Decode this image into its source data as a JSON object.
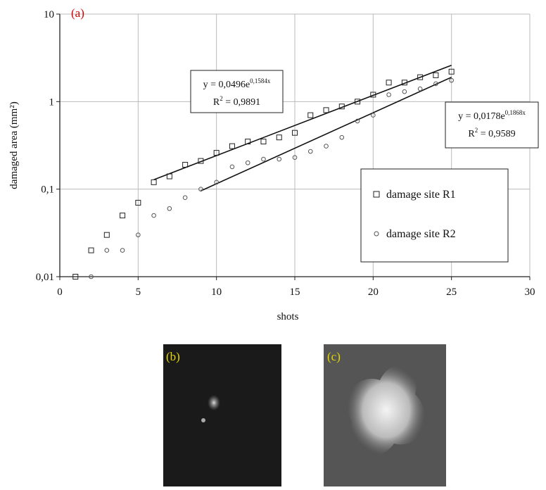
{
  "chart_data": {
    "type": "scatter",
    "panel_label": "(a)",
    "y_label": "damaged area (mm²)",
    "x_label": "shots",
    "log_y": true,
    "grid": true,
    "legend_position": "right",
    "xlim": [
      0,
      30
    ],
    "xticks": [
      0,
      5,
      10,
      15,
      20,
      25,
      30
    ],
    "ylim": [
      0.01,
      10
    ],
    "yticks": [
      {
        "value": 0.01,
        "label": "0,01"
      },
      {
        "value": 0.1,
        "label": "0,1"
      },
      1,
      10
    ],
    "series": [
      {
        "name": "damage site R1",
        "marker": "square",
        "color": "#222222",
        "x": [
          1,
          2,
          3,
          4,
          5,
          6,
          7,
          8,
          9,
          10,
          11,
          12,
          13,
          14,
          15,
          16,
          17,
          18,
          19,
          20,
          21,
          22,
          23,
          24,
          25
        ],
        "values": [
          0.01,
          0.02,
          0.03,
          0.05,
          0.07,
          0.12,
          0.14,
          0.19,
          0.21,
          0.26,
          0.31,
          0.35,
          0.35,
          0.39,
          0.44,
          0.7,
          0.8,
          0.88,
          1.0,
          1.2,
          1.65,
          1.65,
          1.9,
          2.0,
          2.2
        ]
      },
      {
        "name": "damage site R2",
        "marker": "circle",
        "color": "#555555",
        "x": [
          2,
          3,
          4,
          5,
          6,
          7,
          8,
          9,
          10,
          11,
          12,
          13,
          14,
          15,
          16,
          17,
          18,
          19,
          20,
          21,
          22,
          23,
          24,
          25
        ],
        "values": [
          0.01,
          0.02,
          0.02,
          0.03,
          0.05,
          0.06,
          0.08,
          0.1,
          0.12,
          0.18,
          0.2,
          0.22,
          0.22,
          0.23,
          0.27,
          0.31,
          0.39,
          0.6,
          0.7,
          1.2,
          1.3,
          1.4,
          1.6,
          1.75
        ]
      }
    ],
    "fits": [
      {
        "a": 0.0496,
        "b": 0.1584,
        "x_range": [
          6,
          25
        ],
        "eq": "y = 0,0496e",
        "eq_exp": "0,1584x",
        "r2_lead": "R",
        "r2_sup": "2",
        "r2_tail": " = 0,9891"
      },
      {
        "a": 0.0178,
        "b": 0.1868,
        "x_range": [
          9,
          25
        ],
        "eq": "y = 0,0178e",
        "eq_exp": "0,1868x",
        "r2_lead": "R",
        "r2_sup": "2",
        "r2_tail": " = 0,9589"
      }
    ]
  },
  "images": [
    {
      "label": "(b)"
    },
    {
      "label": "(c)"
    }
  ]
}
